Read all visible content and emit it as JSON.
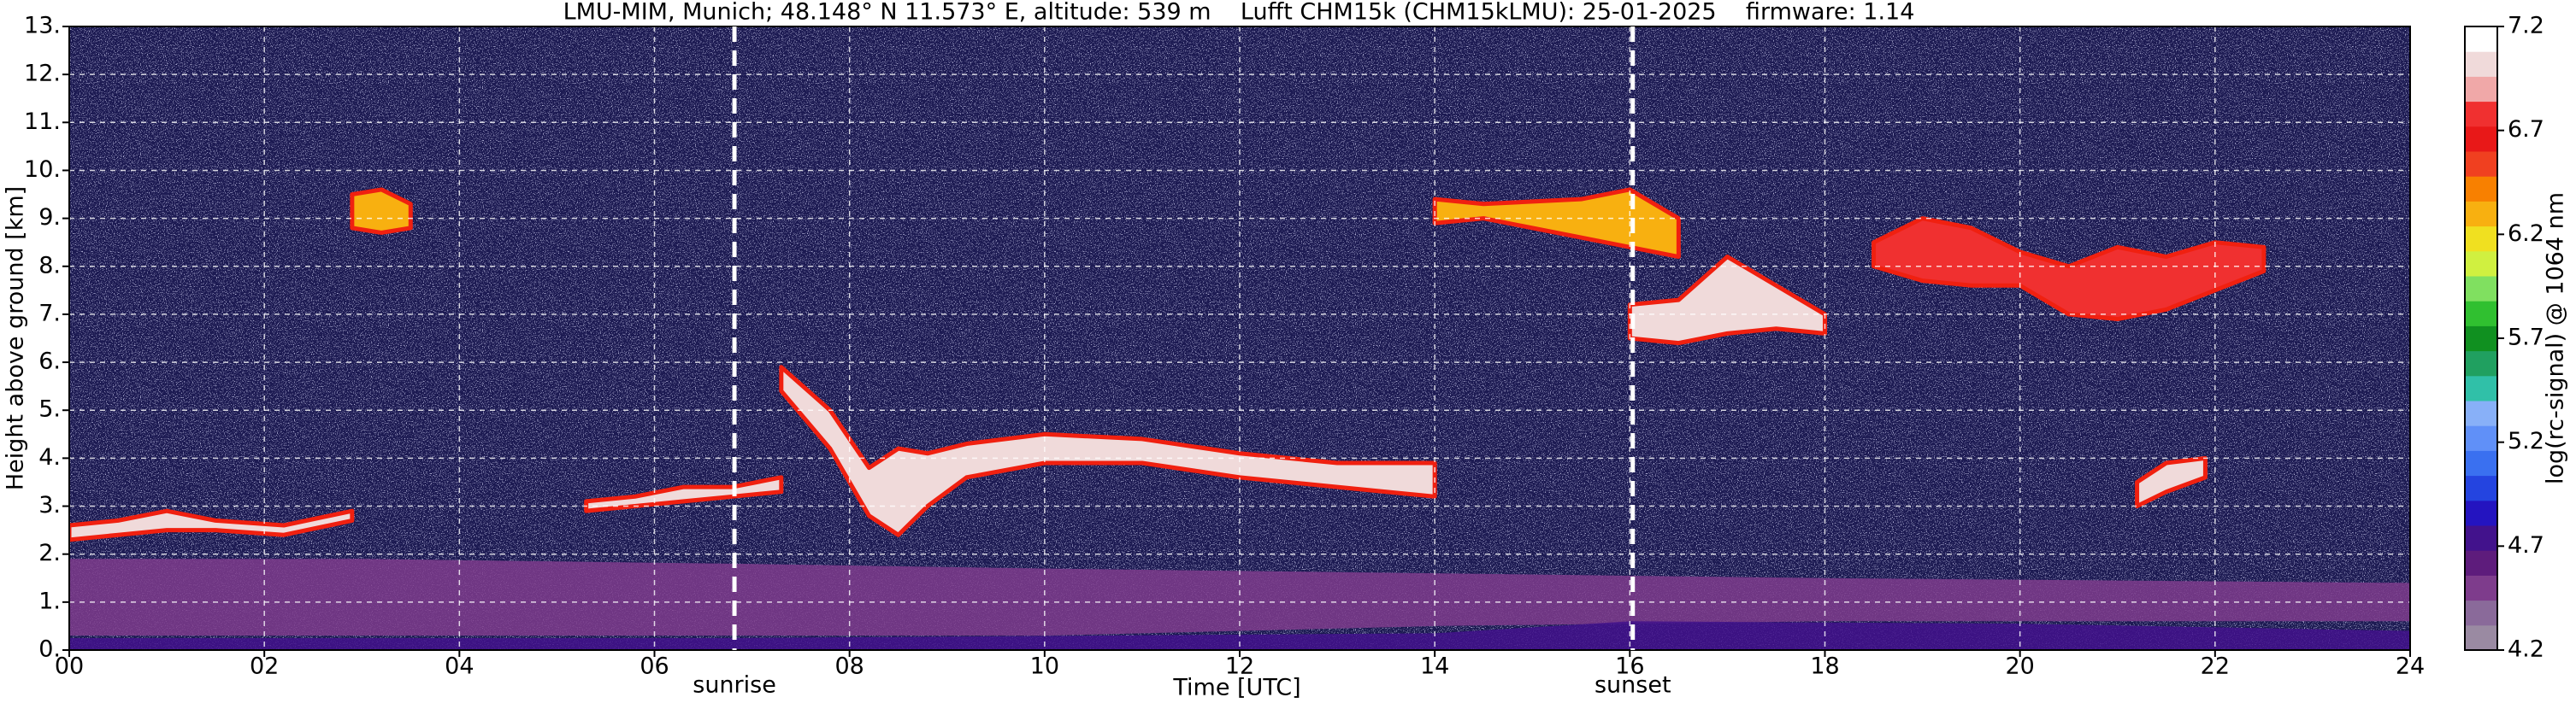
{
  "chart_data": {
    "type": "heatmap",
    "title": "LMU-MIM, Munich; 48.148° N 11.573° E, altitude: 539 m    Lufft CHM15k (CHM15kLMU): 25-01-2025    firmware: 1.14",
    "x_label": "Time [UTC]",
    "y_label": "Height above ground [km]",
    "colorbar_label": "log(rc-signal) @ 1064 nm",
    "xlim": [
      0,
      24
    ],
    "ylim": [
      0,
      13
    ],
    "xticks": [
      {
        "value": 0,
        "label": "00"
      },
      {
        "value": 2,
        "label": "02"
      },
      {
        "value": 4,
        "label": "04"
      },
      {
        "value": 6,
        "label": "06"
      },
      {
        "value": 8,
        "label": "08"
      },
      10,
      12,
      14,
      16,
      18,
      20,
      22,
      24
    ],
    "yticks": [
      {
        "value": 0,
        "label": "0."
      },
      {
        "value": 1,
        "label": "1."
      },
      {
        "value": 2,
        "label": "2."
      },
      {
        "value": 3,
        "label": "3."
      },
      {
        "value": 4,
        "label": "4."
      },
      {
        "value": 5,
        "label": "5."
      },
      {
        "value": 6,
        "label": "6."
      },
      {
        "value": 7,
        "label": "7."
      },
      {
        "value": 8,
        "label": "8."
      },
      {
        "value": 9,
        "label": "9."
      },
      {
        "value": 10,
        "label": "10."
      },
      {
        "value": 11,
        "label": "11."
      },
      {
        "value": 12,
        "label": "12."
      },
      {
        "value": 13,
        "label": "13."
      }
    ],
    "clim": [
      4.2,
      7.2
    ],
    "cticks": [
      4.2,
      4.7,
      5.2,
      5.7,
      6.2,
      6.7,
      7.2
    ],
    "colormap": [
      "#9a8aa2",
      "#8a6a9a",
      "#7e3c8c",
      "#5e1c7c",
      "#42128c",
      "#2414c0",
      "#2444e0",
      "#3a70f0",
      "#6090f8",
      "#88b0f8",
      "#30c0a8",
      "#20a060",
      "#109020",
      "#30c030",
      "#80e060",
      "#d0f040",
      "#f0e020",
      "#f8b010",
      "#f88000",
      "#f04020",
      "#e81818",
      "#f03030",
      "#f0a8a8",
      "#f0dada",
      "#ffffff"
    ],
    "grid": true,
    "cloud_edge_color": "#f02010",
    "layers": [
      {
        "x": [
          0,
          3,
          6.8,
          10,
          14,
          18,
          24
        ],
        "base": [
          0.3,
          0.3,
          0.3,
          0.3,
          0.5,
          0.6,
          0.6
        ],
        "top": [
          1.9,
          1.9,
          1.8,
          1.7,
          1.6,
          1.5,
          1.4
        ],
        "z": 4.45
      },
      {
        "x": [
          0,
          6.8,
          14,
          16,
          20,
          24
        ],
        "base": [
          0,
          0,
          0,
          0,
          0,
          0
        ],
        "top": [
          0.25,
          0.25,
          0.35,
          0.6,
          0.55,
          0.4
        ],
        "z": 4.75
      },
      {
        "x": [
          0,
          0.5,
          1,
          1.5,
          2.2,
          2.9
        ],
        "base": [
          2.3,
          2.4,
          2.5,
          2.5,
          2.4,
          2.7
        ],
        "top": [
          2.6,
          2.7,
          2.9,
          2.7,
          2.6,
          2.9
        ],
        "z": 7.0
      },
      {
        "x": [
          5.3,
          5.8,
          6.3,
          6.8,
          7.3
        ],
        "base": [
          2.9,
          3.0,
          3.1,
          3.2,
          3.3
        ],
        "top": [
          3.1,
          3.2,
          3.4,
          3.4,
          3.6
        ],
        "z": 7.0
      },
      {
        "x": [
          7.3,
          7.8,
          8.2,
          8.5,
          8.8,
          9.2,
          10,
          11,
          12,
          13,
          14
        ],
        "base": [
          5.4,
          4.2,
          2.8,
          2.4,
          3.0,
          3.6,
          3.9,
          3.9,
          3.6,
          3.4,
          3.2
        ],
        "top": [
          5.9,
          5.0,
          3.8,
          4.2,
          4.1,
          4.3,
          4.5,
          4.4,
          4.1,
          3.9,
          3.9
        ],
        "z": 7.0
      },
      {
        "x": [
          16,
          16.5,
          17,
          17.5,
          18
        ],
        "base": [
          6.5,
          6.4,
          6.6,
          6.7,
          6.6
        ],
        "top": [
          7.2,
          7.3,
          8.2,
          7.6,
          7.0
        ],
        "z": 7.0
      },
      {
        "x": [
          18.5,
          19,
          19.5,
          20,
          20.5,
          21,
          21.5,
          22,
          22.5
        ],
        "base": [
          8.0,
          7.7,
          7.6,
          7.6,
          7.0,
          6.9,
          7.1,
          7.5,
          7.9
        ],
        "top": [
          8.5,
          9.0,
          8.8,
          8.3,
          8.0,
          8.4,
          8.2,
          8.5,
          8.4
        ],
        "z": 6.8
      },
      {
        "x": [
          21.2,
          21.5,
          21.9
        ],
        "base": [
          3.0,
          3.3,
          3.6
        ],
        "top": [
          3.5,
          3.9,
          4.0
        ],
        "z": 7.0
      },
      {
        "x": [
          14,
          14.5,
          15.5,
          16,
          16.5
        ],
        "base": [
          8.9,
          9.0,
          8.6,
          8.4,
          8.2
        ],
        "top": [
          9.4,
          9.3,
          9.4,
          9.6,
          9.0
        ],
        "z": 6.3
      },
      {
        "x": [
          2.9,
          3.2,
          3.5
        ],
        "base": [
          8.8,
          8.7,
          8.8
        ],
        "top": [
          9.5,
          9.6,
          9.3
        ],
        "z": 6.3
      }
    ],
    "annotations": [
      {
        "x": 6.82,
        "text": "sunrise"
      },
      {
        "x": 16.03,
        "text": "sunset"
      }
    ]
  }
}
